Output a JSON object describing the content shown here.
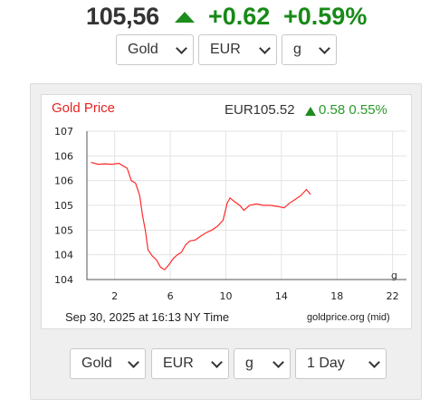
{
  "header": {
    "price": "105,56",
    "change": "+0.62",
    "change_pct": "+0.59%",
    "trend_icon": "up-arrow-icon",
    "trend_color": "#178a17"
  },
  "top_selectors": {
    "metal": "Gold",
    "currency": "EUR",
    "unit": "g"
  },
  "chart": {
    "title": "Gold Price",
    "price": "EUR105.52",
    "change": "0.58 0.55%",
    "date_label": "Sep 30, 2025 at 16:13 NY Time",
    "source": "goldprice.org (mid)",
    "unit_label": "g",
    "line_color": "#ff2a2a"
  },
  "chart_data": {
    "type": "line",
    "title": "Gold Price",
    "xlabel": "",
    "ylabel": "",
    "x_ticks": [
      "2",
      "6",
      "10",
      "14",
      "18",
      "22"
    ],
    "y_ticks": [
      "107",
      "106",
      "106",
      "105",
      "105",
      "104",
      "104"
    ],
    "xlim": [
      0,
      23
    ],
    "ylim": [
      104,
      107
    ],
    "grid": true,
    "series": [
      {
        "values": [
          [
            0.3,
            106.37
          ],
          [
            0.8,
            106.33
          ],
          [
            1.3,
            106.34
          ],
          [
            1.8,
            106.33
          ],
          [
            2.3,
            106.35
          ],
          [
            2.6,
            106.3
          ],
          [
            2.9,
            106.25
          ],
          [
            3.2,
            106.0
          ],
          [
            3.5,
            105.95
          ],
          [
            3.8,
            105.7
          ],
          [
            4.0,
            105.3
          ],
          [
            4.2,
            105.0
          ],
          [
            4.4,
            104.6
          ],
          [
            4.7,
            104.48
          ],
          [
            5.0,
            104.4
          ],
          [
            5.3,
            104.25
          ],
          [
            5.6,
            104.2
          ],
          [
            5.9,
            104.3
          ],
          [
            6.2,
            104.42
          ],
          [
            6.5,
            104.5
          ],
          [
            6.8,
            104.55
          ],
          [
            7.1,
            104.7
          ],
          [
            7.4,
            104.78
          ],
          [
            7.8,
            104.8
          ],
          [
            8.2,
            104.88
          ],
          [
            8.6,
            104.95
          ],
          [
            9.0,
            105.0
          ],
          [
            9.4,
            105.08
          ],
          [
            9.8,
            105.2
          ],
          [
            10.1,
            105.55
          ],
          [
            10.3,
            105.65
          ],
          [
            10.6,
            105.58
          ],
          [
            11.0,
            105.5
          ],
          [
            11.3,
            105.4
          ],
          [
            11.7,
            105.5
          ],
          [
            12.2,
            105.53
          ],
          [
            12.7,
            105.5
          ],
          [
            13.2,
            105.5
          ],
          [
            13.7,
            105.48
          ],
          [
            14.2,
            105.45
          ],
          [
            14.6,
            105.55
          ],
          [
            15.0,
            105.62
          ],
          [
            15.4,
            105.7
          ],
          [
            15.8,
            105.82
          ],
          [
            16.1,
            105.72
          ]
        ]
      }
    ]
  },
  "bottom_selectors": {
    "metal": "Gold",
    "currency": "EUR",
    "unit": "g",
    "period": "1 Day"
  }
}
